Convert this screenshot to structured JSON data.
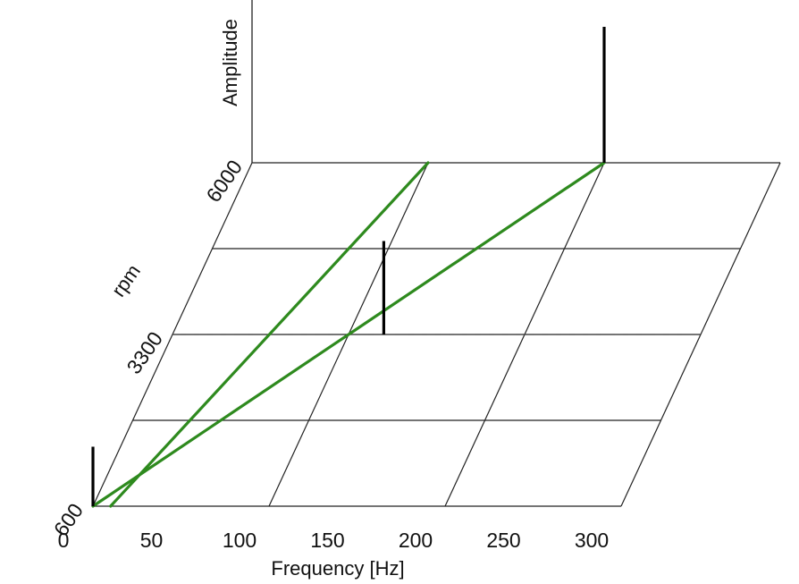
{
  "chart_data": {
    "type": "line",
    "title": "",
    "xlabel": "Frequency [Hz]",
    "ylabel": "rpm",
    "zlabel": "Amplitude",
    "x_ticks": [
      "0",
      "50",
      "100",
      "150",
      "200",
      "250",
      "300"
    ],
    "y_ticks": [
      "600",
      "3300",
      "6000"
    ],
    "xlim": [
      0,
      300
    ],
    "ylim": [
      600,
      6000
    ],
    "grid": true,
    "reference_line_rpm": 3300,
    "orders": [
      {
        "points": [
          {
            "rpm": 600,
            "freq": 10
          },
          {
            "rpm": 6000,
            "freq": 100
          }
        ]
      },
      {
        "points": [
          {
            "rpm": 600,
            "freq": 0
          },
          {
            "rpm": 6000,
            "freq": 200
          }
        ]
      }
    ],
    "amplitude_spikes": [
      {
        "rpm": 600,
        "freq": 0,
        "amp": 0.35
      },
      {
        "rpm": 3300,
        "freq": 120,
        "amp": 0.55
      },
      {
        "rpm": 6000,
        "freq": 200,
        "amp": 0.8
      }
    ],
    "colors": {
      "order_line": "#2e8a1e",
      "spike": "#000000",
      "grid": "#222222"
    }
  }
}
